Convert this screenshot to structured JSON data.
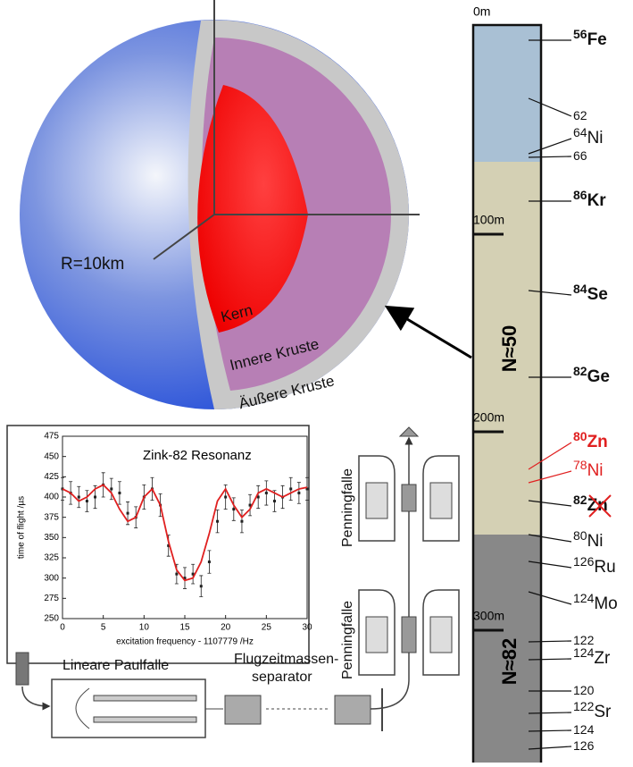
{
  "chart_data": {
    "type": "scatter",
    "title": "Zink-82 Resonanz",
    "x_label": "excitation frequency - 1107779 /Hz",
    "y_label": "time of flight /µs",
    "xlim": [
      0,
      30
    ],
    "ylim": [
      250,
      475
    ],
    "xticks": [
      0,
      5,
      10,
      15,
      20,
      25,
      30
    ],
    "yticks": [
      250,
      275,
      300,
      325,
      350,
      375,
      400,
      425,
      450,
      475
    ],
    "x": [
      0,
      1,
      2,
      3,
      4,
      5,
      6,
      7,
      8,
      9,
      10,
      11,
      12,
      13,
      14,
      15,
      16,
      17,
      18,
      19,
      20,
      21,
      22,
      23,
      24,
      25,
      26,
      27,
      28,
      29,
      30
    ],
    "series": [
      {
        "name": "measurement",
        "color": "#222222",
        "values": [
          410,
          405,
          400,
          395,
          400,
          415,
          410,
          405,
          380,
          375,
          400,
          410,
          390,
          340,
          305,
          300,
          305,
          290,
          320,
          370,
          400,
          385,
          370,
          390,
          400,
          405,
          395,
          400,
          410,
          405,
          410
        ],
        "errors": [
          14,
          14,
          13,
          13,
          14,
          15,
          13,
          14,
          14,
          13,
          15,
          14,
          14,
          13,
          12,
          13,
          12,
          13,
          14,
          14,
          15,
          14,
          14,
          13,
          14,
          15,
          13,
          14,
          14,
          13,
          14
        ]
      },
      {
        "name": "fit",
        "color": "#e02020",
        "values": [
          410,
          405,
          395,
          400,
          410,
          415,
          405,
          385,
          370,
          375,
          400,
          410,
          390,
          345,
          310,
          297,
          300,
          320,
          355,
          395,
          410,
          390,
          375,
          385,
          405,
          410,
          405,
          400,
          405,
          410,
          412
        ]
      }
    ]
  },
  "sphere": {
    "radius": "R=10km",
    "core": "Kern",
    "inner_crust": "Innere Kruste",
    "outer_crust": "Äußere Kruste"
  },
  "apparatus": {
    "paul_trap": "Lineare Paulfalle",
    "tof_separator": [
      "Flugzeitmassen-",
      "separator"
    ],
    "penning_1": "Penningfalle",
    "penning_2": "Penningfalle"
  },
  "column": {
    "depths": [
      "0m",
      "100m",
      "200m",
      "300m"
    ],
    "regions": [
      "N≈50",
      "N≈82"
    ],
    "labels": [
      {
        "mass": "56",
        "element": "Fe"
      },
      {
        "mass": "62"
      },
      {
        "mass": "64",
        "element": "Ni"
      },
      {
        "mass": "66"
      },
      {
        "mass": "86",
        "element": "Kr"
      },
      {
        "mass": "84",
        "element": "Se"
      },
      {
        "mass": "82",
        "element": "Ge"
      },
      {
        "mass": "80",
        "element": "Zn",
        "color": "#e02020"
      },
      {
        "mass": "78",
        "element": "Ni",
        "color": "#e02020"
      },
      {
        "mass": "82",
        "element": "Zn"
      },
      {
        "mass": "80",
        "element": "Ni"
      },
      {
        "mass": "126",
        "element": "Ru"
      },
      {
        "mass": "124",
        "element": "Mo"
      },
      {
        "mass": "122"
      },
      {
        "mass": "124",
        "element": "Zr"
      },
      {
        "mass": "120"
      },
      {
        "mass": "122",
        "element": "Sr"
      },
      {
        "mass": "124"
      },
      {
        "mass": "126"
      }
    ]
  }
}
